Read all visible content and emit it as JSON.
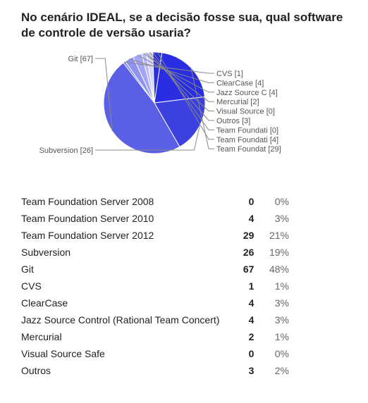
{
  "question": "No cenário IDEAL, se a decisão fosse sua, qual software de controle de versão usaria?",
  "chart_data": {
    "type": "pie",
    "slices": [
      {
        "callout": "Git [67]",
        "value": 67,
        "color": "#5a5fe6"
      },
      {
        "callout": "CVS [1]",
        "value": 1,
        "color": "#7d80ee"
      },
      {
        "callout": "ClearCase [4]",
        "value": 4,
        "color": "#8f92f1"
      },
      {
        "callout": "Jazz Source C [4]",
        "value": 4,
        "color": "#a3a5f4"
      },
      {
        "callout": "Mercurial [2]",
        "value": 2,
        "color": "#b8baf7"
      },
      {
        "callout": "Visual Source [0]",
        "value": 0,
        "color": "#c9cbf9"
      },
      {
        "callout": "Outros [3]",
        "value": 3,
        "color": "#d4d6fb"
      },
      {
        "callout": "Team Foundati [0]",
        "value": 0,
        "color": "#1f23c8"
      },
      {
        "callout": "Team Foundati [4]",
        "value": 4,
        "color": "#2b2fd6"
      },
      {
        "callout": "Team Foundat [29]",
        "value": 29,
        "color": "#2a2ee2"
      },
      {
        "callout": "Subversion [26]",
        "value": 26,
        "color": "#3b40df"
      }
    ]
  },
  "results": [
    {
      "option": "Team Foundation Server 2008",
      "count": "0",
      "percent": "0%"
    },
    {
      "option": "Team Foundation Server 2010",
      "count": "4",
      "percent": "3%"
    },
    {
      "option": "Team Foundation Server 2012",
      "count": "29",
      "percent": "21%"
    },
    {
      "option": "Subversion",
      "count": "26",
      "percent": "19%"
    },
    {
      "option": "Git",
      "count": "67",
      "percent": "48%"
    },
    {
      "option": "CVS",
      "count": "1",
      "percent": "1%"
    },
    {
      "option": "ClearCase",
      "count": "4",
      "percent": "3%"
    },
    {
      "option": "Jazz Source Control (Rational Team Concert)",
      "count": "4",
      "percent": "3%"
    },
    {
      "option": "Mercurial",
      "count": "2",
      "percent": "1%"
    },
    {
      "option": "Visual Source Safe",
      "count": "0",
      "percent": "0%"
    },
    {
      "option": "Outros",
      "count": "3",
      "percent": "2%"
    }
  ]
}
